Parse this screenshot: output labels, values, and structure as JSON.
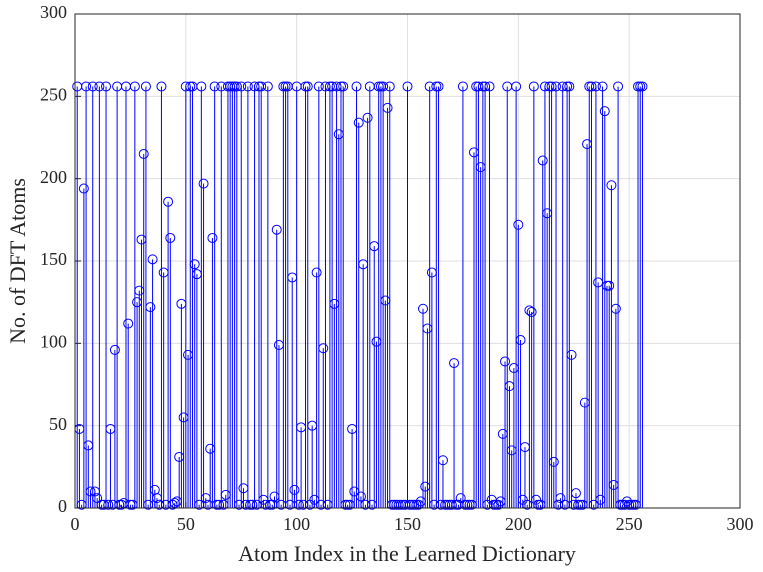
{
  "chart_data": {
    "type": "stem",
    "xlabel": "Atom Index in the Learned Dictionary",
    "ylabel": "No. of DFT Atoms",
    "xlim": [
      0,
      300
    ],
    "xticks": [
      0,
      50,
      100,
      150,
      200,
      250,
      300
    ],
    "ylim": [
      0,
      300
    ],
    "yticks": [
      0,
      50,
      100,
      150,
      200,
      250,
      300
    ],
    "grid": true,
    "x": [
      1,
      2,
      3,
      4,
      5,
      6,
      7,
      8,
      9,
      10,
      11,
      12,
      13,
      14,
      15,
      16,
      17,
      18,
      19,
      20,
      21,
      22,
      23,
      24,
      25,
      26,
      27,
      28,
      29,
      30,
      31,
      32,
      33,
      34,
      35,
      36,
      37,
      38,
      39,
      40,
      41,
      42,
      43,
      44,
      45,
      46,
      47,
      48,
      49,
      50,
      51,
      52,
      53,
      54,
      55,
      56,
      57,
      58,
      59,
      60,
      61,
      62,
      63,
      64,
      65,
      66,
      67,
      68,
      69,
      70,
      71,
      72,
      73,
      74,
      75,
      76,
      77,
      78,
      79,
      80,
      81,
      82,
      83,
      84,
      85,
      86,
      87,
      88,
      89,
      90,
      91,
      92,
      93,
      94,
      95,
      96,
      97,
      98,
      99,
      100,
      101,
      102,
      103,
      104,
      105,
      106,
      107,
      108,
      109,
      110,
      111,
      112,
      113,
      114,
      115,
      116,
      117,
      118,
      119,
      120,
      121,
      122,
      123,
      124,
      125,
      126,
      127,
      128,
      129,
      130,
      131,
      132,
      133,
      134,
      135,
      136,
      137,
      138,
      139,
      140,
      141,
      142,
      143,
      144,
      145,
      146,
      147,
      148,
      149,
      150,
      151,
      152,
      153,
      154,
      155,
      156,
      157,
      158,
      159,
      160,
      161,
      162,
      163,
      164,
      165,
      166,
      167,
      168,
      169,
      170,
      171,
      172,
      173,
      174,
      175,
      176,
      177,
      178,
      179,
      180,
      181,
      182,
      183,
      184,
      185,
      186,
      187,
      188,
      189,
      190,
      191,
      192,
      193,
      194,
      195,
      196,
      197,
      198,
      199,
      200,
      201,
      202,
      203,
      204,
      205,
      206,
      207,
      208,
      209,
      210,
      211,
      212,
      213,
      214,
      215,
      216,
      217,
      218,
      219,
      220,
      221,
      222,
      223,
      224,
      225,
      226,
      227,
      228,
      229,
      230,
      231,
      232,
      233,
      234,
      235,
      236,
      237,
      238,
      239,
      240,
      241,
      242,
      243,
      244,
      245,
      246,
      247,
      248,
      249,
      250,
      251,
      252,
      253,
      254,
      255,
      256
    ],
    "series": [
      {
        "color": "#0000ff",
        "values": [
          256,
          48,
          2,
          194,
          256,
          38,
          10,
          256,
          10,
          6,
          256,
          2,
          2,
          256,
          2,
          48,
          2,
          96,
          256,
          2,
          2,
          3,
          256,
          112,
          2,
          2,
          256,
          125,
          132,
          163,
          215,
          256,
          2,
          122,
          151,
          11,
          6,
          2,
          256,
          143,
          2,
          186,
          164,
          2,
          3,
          4,
          31,
          124,
          55,
          256,
          93,
          256,
          256,
          148,
          142,
          2,
          256,
          197,
          6,
          2,
          36,
          164,
          256,
          2,
          2,
          256,
          2,
          8,
          256,
          256,
          256,
          256,
          256,
          2,
          256,
          12,
          2,
          256,
          2,
          2,
          256,
          2,
          256,
          256,
          5,
          2,
          256,
          2,
          2,
          7,
          169,
          99,
          2,
          256,
          256,
          256,
          2,
          140,
          11,
          256,
          2,
          49,
          2,
          256,
          256,
          2,
          50,
          5,
          143,
          256,
          2,
          97,
          256,
          2,
          256,
          256,
          124,
          256,
          227,
          256,
          256,
          2,
          2,
          2,
          48,
          10,
          256,
          234,
          7,
          148,
          2,
          237,
          256,
          2,
          159,
          101,
          256,
          256,
          256,
          126,
          243,
          256,
          2,
          2,
          2,
          2,
          2,
          2,
          2,
          256,
          2,
          2,
          2,
          2,
          2,
          4,
          121,
          13,
          109,
          256,
          143,
          2,
          256,
          256,
          2,
          29,
          2,
          2,
          2,
          2,
          88,
          2,
          2,
          6,
          256,
          2,
          2,
          2,
          2,
          216,
          256,
          256,
          207,
          256,
          256,
          2,
          256,
          5,
          2,
          2,
          2,
          4,
          45,
          89,
          256,
          74,
          35,
          85,
          256,
          172,
          102,
          5,
          37,
          2,
          120,
          119,
          256,
          5,
          2,
          2,
          211,
          256,
          179,
          256,
          256,
          28,
          256,
          2,
          6,
          256,
          2,
          256,
          256,
          93,
          2,
          9,
          2,
          2,
          2,
          64,
          221,
          256,
          256,
          2,
          256,
          137,
          5,
          256,
          241,
          135,
          135,
          196,
          14,
          121,
          256,
          2,
          2,
          2,
          4,
          2,
          2,
          2,
          2,
          256,
          256,
          256
        ]
      }
    ]
  }
}
